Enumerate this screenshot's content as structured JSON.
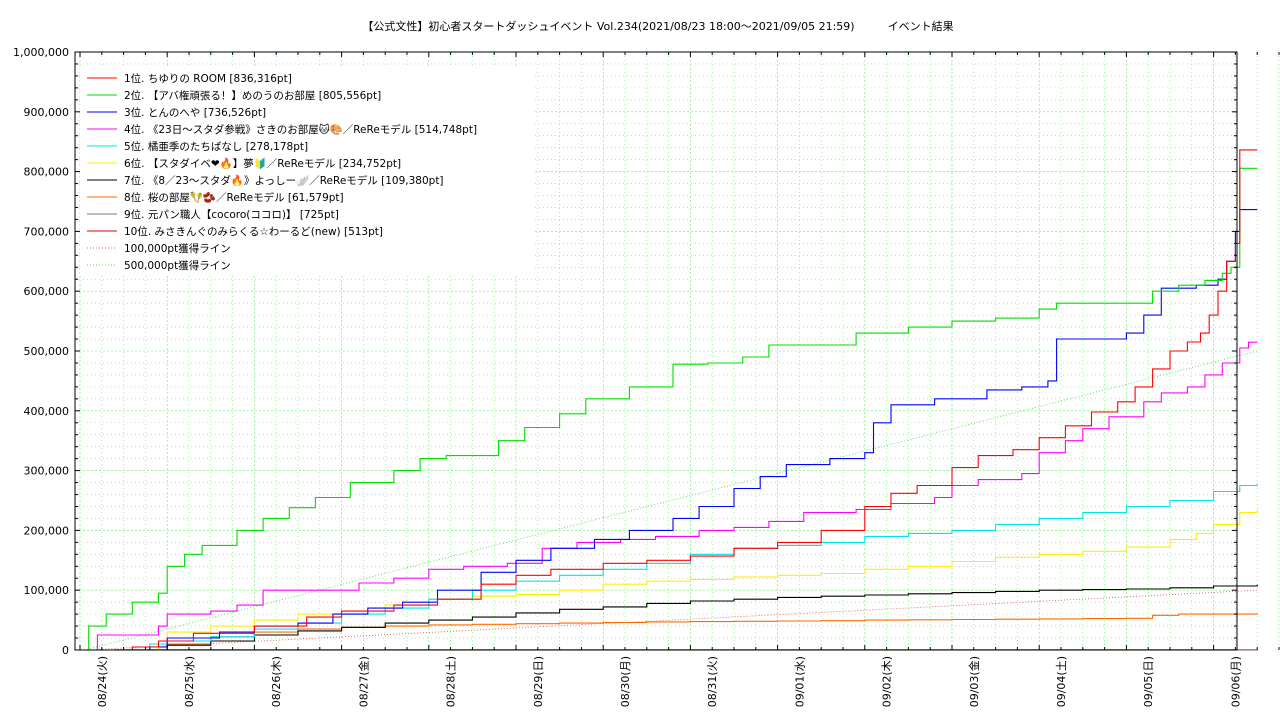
{
  "chart_data": {
    "type": "line",
    "title": "【公式文性】初心者スタートダッシュイベント Vol.234(2021/08/23 18:00〜2021/09/05 21:59)　　　イベント結果",
    "x_tick_labels": [
      "08/24(火)",
      "08/25(水)",
      "08/26(木)",
      "08/27(金)",
      "08/28(土)",
      "08/29(日)",
      "08/30(月)",
      "08/31(火)",
      "09/01(水)",
      "09/02(木)",
      "09/03(金)",
      "09/04(土)",
      "09/05(日)",
      "09/06(月)"
    ],
    "y_tick_labels": [
      "0",
      "100,000",
      "200,000",
      "300,000",
      "400,000",
      "500,000",
      "600,000",
      "700,000",
      "800,000",
      "900,000",
      "1,000,000"
    ],
    "xlim_days": [
      0,
      14
    ],
    "ylim": [
      0,
      1000000
    ],
    "grid": true,
    "legend_position": "top-left",
    "series": [
      {
        "name": "1位. ちゆりの ROOM [836,316pt]",
        "color": "#ff0000",
        "points": [
          [
            0.05,
            0
          ],
          [
            0.6,
            5000
          ],
          [
            0.9,
            15000
          ],
          [
            1.3,
            28000
          ],
          [
            2.0,
            40000
          ],
          [
            2.6,
            55000
          ],
          [
            3.0,
            65000
          ],
          [
            3.6,
            75000
          ],
          [
            4.1,
            85000
          ],
          [
            4.6,
            110000
          ],
          [
            5.0,
            125000
          ],
          [
            5.4,
            135000
          ],
          [
            6.0,
            145000
          ],
          [
            6.5,
            150000
          ],
          [
            7.0,
            157000
          ],
          [
            7.5,
            170000
          ],
          [
            8.0,
            180000
          ],
          [
            8.5,
            200000
          ],
          [
            9.0,
            240000
          ],
          [
            9.3,
            262000
          ],
          [
            9.6,
            275000
          ],
          [
            10.0,
            305000
          ],
          [
            10.3,
            325000
          ],
          [
            10.7,
            335000
          ],
          [
            11.0,
            355000
          ],
          [
            11.3,
            375000
          ],
          [
            11.6,
            398000
          ],
          [
            11.9,
            415000
          ],
          [
            12.1,
            440000
          ],
          [
            12.3,
            470000
          ],
          [
            12.5,
            500000
          ],
          [
            12.7,
            515000
          ],
          [
            12.85,
            530000
          ],
          [
            12.95,
            560000
          ],
          [
            13.05,
            600000
          ],
          [
            13.15,
            650000
          ],
          [
            13.25,
            680000
          ],
          [
            13.3,
            836316
          ],
          [
            13.5,
            836316
          ]
        ]
      },
      {
        "name": "2位. 【アバ権頑張る！】めのうのお部屋 [805,556pt]",
        "color": "#00dd00",
        "points": [
          [
            0.05,
            0
          ],
          [
            0.1,
            40000
          ],
          [
            0.3,
            60000
          ],
          [
            0.6,
            80000
          ],
          [
            0.9,
            95000
          ],
          [
            1.0,
            140000
          ],
          [
            1.2,
            160000
          ],
          [
            1.4,
            175000
          ],
          [
            1.8,
            200000
          ],
          [
            2.1,
            220000
          ],
          [
            2.4,
            238000
          ],
          [
            2.7,
            255000
          ],
          [
            3.1,
            280000
          ],
          [
            3.6,
            300000
          ],
          [
            3.9,
            320000
          ],
          [
            4.2,
            325000
          ],
          [
            4.8,
            350000
          ],
          [
            5.1,
            372000
          ],
          [
            5.5,
            395000
          ],
          [
            5.8,
            420000
          ],
          [
            6.3,
            440000
          ],
          [
            6.8,
            478000
          ],
          [
            7.2,
            480000
          ],
          [
            7.6,
            490000
          ],
          [
            7.9,
            510000
          ],
          [
            8.4,
            510000
          ],
          [
            8.9,
            530000
          ],
          [
            9.5,
            540000
          ],
          [
            10.0,
            550000
          ],
          [
            10.5,
            555000
          ],
          [
            11.0,
            570000
          ],
          [
            11.2,
            580000
          ],
          [
            11.8,
            580000
          ],
          [
            12.3,
            600000
          ],
          [
            12.6,
            610000
          ],
          [
            12.9,
            618000
          ],
          [
            13.1,
            630000
          ],
          [
            13.2,
            640000
          ],
          [
            13.3,
            805556
          ],
          [
            13.5,
            805556
          ]
        ]
      },
      {
        "name": "3位. とんのへや [736,526pt]",
        "color": "#0000ff",
        "points": [
          [
            0.05,
            0
          ],
          [
            0.8,
            5000
          ],
          [
            1.0,
            20000
          ],
          [
            1.6,
            30000
          ],
          [
            2.0,
            40000
          ],
          [
            2.5,
            45000
          ],
          [
            2.9,
            60000
          ],
          [
            3.3,
            70000
          ],
          [
            3.7,
            80000
          ],
          [
            4.1,
            100000
          ],
          [
            4.6,
            130000
          ],
          [
            5.0,
            150000
          ],
          [
            5.4,
            170000
          ],
          [
            5.9,
            185000
          ],
          [
            6.3,
            200000
          ],
          [
            6.8,
            220000
          ],
          [
            7.1,
            240000
          ],
          [
            7.5,
            270000
          ],
          [
            7.8,
            290000
          ],
          [
            8.1,
            310000
          ],
          [
            8.6,
            320000
          ],
          [
            9.0,
            330000
          ],
          [
            9.1,
            380000
          ],
          [
            9.3,
            410000
          ],
          [
            9.8,
            420000
          ],
          [
            10.4,
            435000
          ],
          [
            10.8,
            440000
          ],
          [
            11.1,
            450000
          ],
          [
            11.2,
            520000
          ],
          [
            11.6,
            520000
          ],
          [
            12.0,
            530000
          ],
          [
            12.2,
            560000
          ],
          [
            12.4,
            605000
          ],
          [
            12.8,
            610000
          ],
          [
            13.05,
            620000
          ],
          [
            13.15,
            650000
          ],
          [
            13.25,
            700000
          ],
          [
            13.3,
            736526
          ],
          [
            13.5,
            736526
          ]
        ]
      },
      {
        "name": "4位. 《23日〜スタダ参戦》さきのお部屋🐱🎨／ReReモデル [514,748pt]",
        "color": "#ff00ff",
        "points": [
          [
            0.05,
            0
          ],
          [
            0.2,
            25000
          ],
          [
            0.9,
            40000
          ],
          [
            1.0,
            60000
          ],
          [
            1.5,
            65000
          ],
          [
            1.8,
            75000
          ],
          [
            2.1,
            100000
          ],
          [
            2.9,
            100000
          ],
          [
            3.2,
            112000
          ],
          [
            3.6,
            120000
          ],
          [
            4.0,
            135000
          ],
          [
            4.4,
            140000
          ],
          [
            4.9,
            145000
          ],
          [
            5.3,
            170000
          ],
          [
            5.7,
            180000
          ],
          [
            6.2,
            185000
          ],
          [
            6.6,
            190000
          ],
          [
            7.1,
            200000
          ],
          [
            7.5,
            205000
          ],
          [
            7.9,
            215000
          ],
          [
            8.3,
            230000
          ],
          [
            8.9,
            235000
          ],
          [
            9.3,
            245000
          ],
          [
            9.8,
            255000
          ],
          [
            10.0,
            275000
          ],
          [
            10.3,
            285000
          ],
          [
            10.8,
            295000
          ],
          [
            11.0,
            330000
          ],
          [
            11.3,
            350000
          ],
          [
            11.5,
            370000
          ],
          [
            11.8,
            390000
          ],
          [
            12.2,
            415000
          ],
          [
            12.4,
            430000
          ],
          [
            12.7,
            440000
          ],
          [
            12.9,
            460000
          ],
          [
            13.1,
            480000
          ],
          [
            13.3,
            505000
          ],
          [
            13.4,
            514748
          ],
          [
            13.5,
            514748
          ]
        ]
      },
      {
        "name": "5位. 橘亜季のたちばなし [278,178pt]",
        "color": "#00e6e6",
        "points": [
          [
            0.05,
            0
          ],
          [
            0.8,
            10000
          ],
          [
            1.0,
            15000
          ],
          [
            1.5,
            22000
          ],
          [
            2.0,
            35000
          ],
          [
            2.5,
            45000
          ],
          [
            3.0,
            60000
          ],
          [
            3.5,
            70000
          ],
          [
            4.0,
            85000
          ],
          [
            4.5,
            100000
          ],
          [
            5.0,
            115000
          ],
          [
            5.5,
            125000
          ],
          [
            6.0,
            135000
          ],
          [
            6.5,
            145000
          ],
          [
            7.0,
            160000
          ],
          [
            7.5,
            170000
          ],
          [
            8.0,
            175000
          ],
          [
            8.5,
            180000
          ],
          [
            9.0,
            190000
          ],
          [
            9.5,
            195000
          ],
          [
            10.0,
            200000
          ],
          [
            10.5,
            210000
          ],
          [
            11.0,
            220000
          ],
          [
            11.5,
            230000
          ],
          [
            12.0,
            240000
          ],
          [
            12.5,
            250000
          ],
          [
            13.0,
            265000
          ],
          [
            13.3,
            275000
          ],
          [
            13.5,
            278178
          ]
        ]
      },
      {
        "name": "6位. 【スタダイベ❤🔥】夢🔰／ReReモデル [234,752pt]",
        "color": "#ffee00",
        "points": [
          [
            0.05,
            0
          ],
          [
            0.9,
            10000
          ],
          [
            1.0,
            30000
          ],
          [
            1.5,
            40000
          ],
          [
            2.0,
            50000
          ],
          [
            2.5,
            60000
          ],
          [
            3.0,
            65000
          ],
          [
            3.5,
            75000
          ],
          [
            4.0,
            85000
          ],
          [
            4.5,
            90000
          ],
          [
            5.0,
            93000
          ],
          [
            5.5,
            100000
          ],
          [
            6.0,
            110000
          ],
          [
            6.5,
            115000
          ],
          [
            7.0,
            118000
          ],
          [
            7.5,
            122000
          ],
          [
            8.0,
            125000
          ],
          [
            8.5,
            128000
          ],
          [
            9.0,
            135000
          ],
          [
            9.5,
            140000
          ],
          [
            10.0,
            148000
          ],
          [
            10.5,
            155000
          ],
          [
            11.0,
            160000
          ],
          [
            11.5,
            165000
          ],
          [
            12.0,
            172000
          ],
          [
            12.5,
            185000
          ],
          [
            12.8,
            195000
          ],
          [
            13.0,
            210000
          ],
          [
            13.3,
            230000
          ],
          [
            13.5,
            234752
          ]
        ]
      },
      {
        "name": "7位. 《8／23〜スタダ🔥》よっしー🪽／ReReモデル [109,380pt]",
        "color": "#000000",
        "points": [
          [
            0.05,
            0
          ],
          [
            1.0,
            8000
          ],
          [
            1.5,
            15000
          ],
          [
            2.0,
            25000
          ],
          [
            2.5,
            32000
          ],
          [
            3.0,
            38000
          ],
          [
            3.5,
            45000
          ],
          [
            4.0,
            50000
          ],
          [
            4.5,
            55000
          ],
          [
            5.0,
            62000
          ],
          [
            5.5,
            68000
          ],
          [
            6.0,
            72000
          ],
          [
            6.5,
            78000
          ],
          [
            7.0,
            82000
          ],
          [
            7.5,
            85000
          ],
          [
            8.0,
            88000
          ],
          [
            8.5,
            90000
          ],
          [
            9.0,
            92000
          ],
          [
            9.5,
            94000
          ],
          [
            10.0,
            96000
          ],
          [
            10.5,
            98000
          ],
          [
            11.0,
            100000
          ],
          [
            11.5,
            101000
          ],
          [
            12.0,
            102000
          ],
          [
            12.5,
            104000
          ],
          [
            13.0,
            107000
          ],
          [
            13.5,
            109380
          ]
        ]
      },
      {
        "name": "8位. 桜の部屋🪇🫘／ReReモデル [61,579pt]",
        "color": "#ff6a00",
        "points": [
          [
            0.05,
            0
          ],
          [
            0.6,
            5000
          ],
          [
            1.0,
            10000
          ],
          [
            1.5,
            22000
          ],
          [
            2.0,
            30000
          ],
          [
            2.5,
            35000
          ],
          [
            3.0,
            38000
          ],
          [
            3.5,
            40000
          ],
          [
            4.0,
            42000
          ],
          [
            4.5,
            43000
          ],
          [
            5.0,
            44000
          ],
          [
            5.5,
            45000
          ],
          [
            6.0,
            46000
          ],
          [
            6.5,
            47000
          ],
          [
            7.0,
            47500
          ],
          [
            7.5,
            48000
          ],
          [
            8.0,
            48500
          ],
          [
            8.5,
            49000
          ],
          [
            9.0,
            50000
          ],
          [
            9.5,
            50500
          ],
          [
            10.0,
            51000
          ],
          [
            10.5,
            51500
          ],
          [
            11.0,
            52000
          ],
          [
            11.5,
            52500
          ],
          [
            12.0,
            53000
          ],
          [
            12.3,
            58000
          ],
          [
            12.6,
            60000
          ],
          [
            13.5,
            61579
          ]
        ]
      },
      {
        "name": "9位. 元パン職人【cocoro(ココロ)】 [725pt]",
        "color": "#7a7a7a",
        "points": [
          [
            0.05,
            0
          ],
          [
            0.4,
            300
          ],
          [
            13.5,
            725
          ]
        ]
      },
      {
        "name": "10位. みさきんぐのみらくる☆わーるど(new) [513pt]",
        "color": "#e60000",
        "points": [
          [
            0.05,
            0
          ],
          [
            0.4,
            200
          ],
          [
            13.5,
            513
          ]
        ]
      },
      {
        "name": "100,000pt獲得ライン",
        "color": "#e06060",
        "dotted": true,
        "points": [
          [
            0.05,
            0
          ],
          [
            13.5,
            100000
          ]
        ]
      },
      {
        "name": "500,000pt獲得ライン",
        "color": "#55dd55",
        "dotted": true,
        "points": [
          [
            0.05,
            0
          ],
          [
            13.5,
            500000
          ]
        ]
      }
    ]
  }
}
